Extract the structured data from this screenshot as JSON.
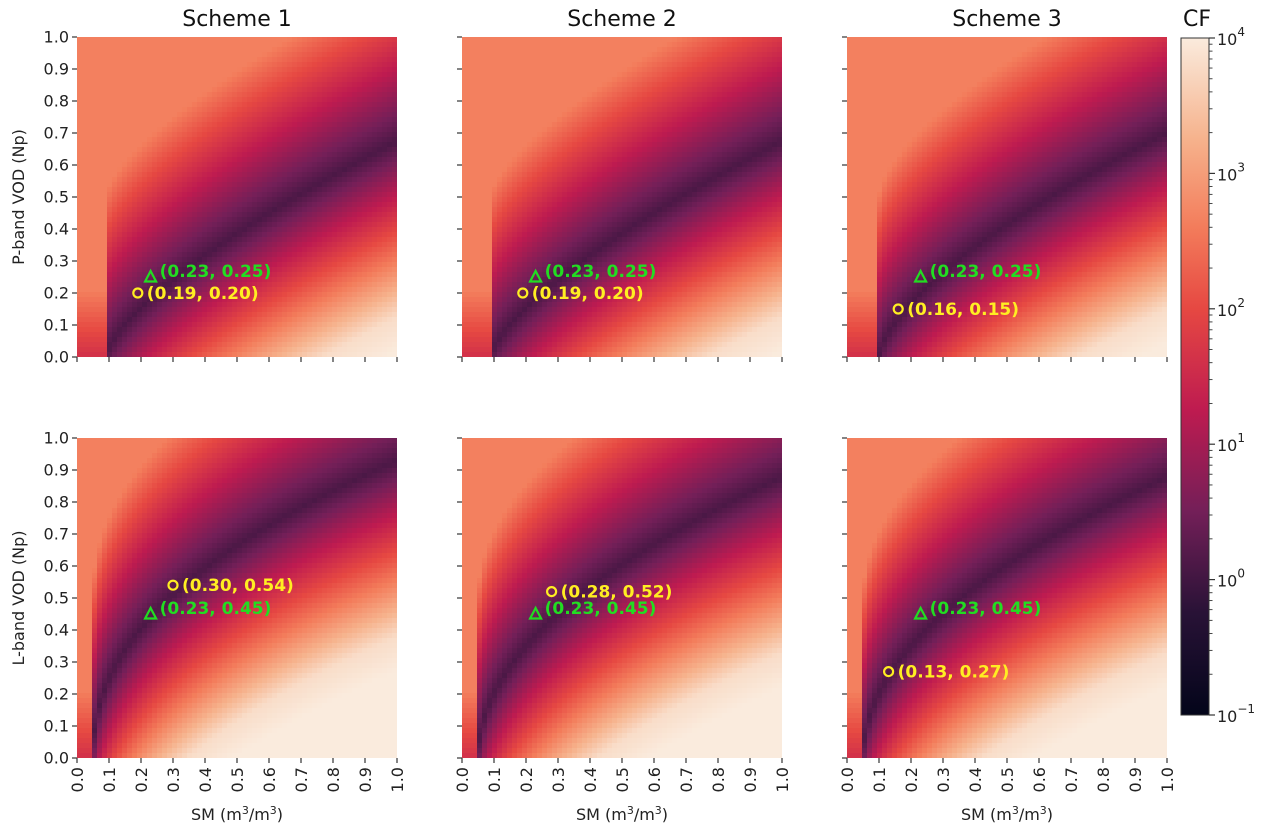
{
  "chart_data": {
    "type": "heatmap",
    "column_titles": [
      "Scheme 1",
      "Scheme 2",
      "Scheme 3"
    ],
    "row_ylabels": [
      "P-band VOD (Np)",
      "L-band VOD (Np)"
    ],
    "xlabel": {
      "main": "SM (m",
      "sup1": "3",
      "mid": "/m",
      "sup2": "3",
      "end": ")"
    },
    "xlim": [
      0,
      1
    ],
    "ylim": [
      0,
      1
    ],
    "ticks": [
      "0.0",
      "0.1",
      "0.2",
      "0.3",
      "0.4",
      "0.5",
      "0.6",
      "0.7",
      "0.8",
      "0.9",
      "1.0"
    ],
    "colorbar": {
      "label": "CF",
      "scale": "log",
      "range": [
        0.1,
        10000
      ],
      "ticks": [
        {
          "value": 10000,
          "base": "10",
          "exp": "4"
        },
        {
          "value": 1000,
          "base": "10",
          "exp": "3"
        },
        {
          "value": 100,
          "base": "10",
          "exp": "2"
        },
        {
          "value": 10,
          "base": "10",
          "exp": "1"
        },
        {
          "value": 1,
          "base": "10",
          "exp": "0"
        },
        {
          "value": 0.1,
          "base": "10",
          "exp": "−1"
        }
      ]
    },
    "panels": [
      {
        "row": 0,
        "col": 0,
        "reference": {
          "x": 0.23,
          "y": 0.25,
          "label": "(0.23, 0.25)",
          "marker": "triangle",
          "color": "#22dd22"
        },
        "estimate": {
          "x": 0.19,
          "y": 0.2,
          "label": "(0.19, 0.20)",
          "marker": "circle",
          "color": "#ffee22"
        }
      },
      {
        "row": 0,
        "col": 1,
        "reference": {
          "x": 0.23,
          "y": 0.25,
          "label": "(0.23, 0.25)",
          "marker": "triangle",
          "color": "#22dd22"
        },
        "estimate": {
          "x": 0.19,
          "y": 0.2,
          "label": "(0.19, 0.20)",
          "marker": "circle",
          "color": "#ffee22"
        }
      },
      {
        "row": 0,
        "col": 2,
        "reference": {
          "x": 0.23,
          "y": 0.25,
          "label": "(0.23, 0.25)",
          "marker": "triangle",
          "color": "#22dd22"
        },
        "estimate": {
          "x": 0.16,
          "y": 0.15,
          "label": "(0.16, 0.15)",
          "marker": "circle",
          "color": "#ffee22"
        }
      },
      {
        "row": 1,
        "col": 0,
        "reference": {
          "x": 0.23,
          "y": 0.45,
          "label": "(0.23, 0.45)",
          "marker": "triangle",
          "color": "#22dd22"
        },
        "estimate": {
          "x": 0.3,
          "y": 0.54,
          "label": "(0.30, 0.54)",
          "marker": "circle",
          "color": "#ffee22"
        }
      },
      {
        "row": 1,
        "col": 1,
        "reference": {
          "x": 0.23,
          "y": 0.45,
          "label": "(0.23, 0.45)",
          "marker": "triangle",
          "color": "#22dd22"
        },
        "estimate": {
          "x": 0.28,
          "y": 0.52,
          "label": "(0.28, 0.52)",
          "marker": "circle",
          "color": "#ffee22"
        }
      },
      {
        "row": 1,
        "col": 2,
        "reference": {
          "x": 0.23,
          "y": 0.45,
          "label": "(0.23, 0.45)",
          "marker": "triangle",
          "color": "#22dd22"
        },
        "estimate": {
          "x": 0.13,
          "y": 0.27,
          "label": "(0.13, 0.27)",
          "marker": "circle",
          "color": "#ffee22"
        }
      }
    ]
  }
}
